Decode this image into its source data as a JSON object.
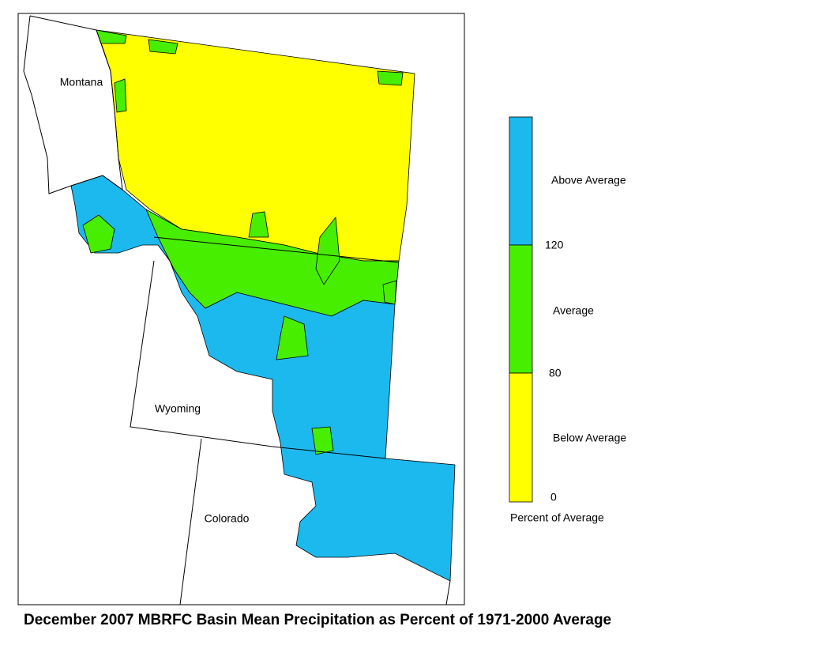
{
  "title": "December 2007 MBRFC Basin Mean Precipitation as Percent of 1971-2000 Average",
  "map": {
    "states": [
      {
        "label": "Montana"
      },
      {
        "label": "Wyoming"
      },
      {
        "label": "Colorado"
      }
    ]
  },
  "legend": {
    "title": "Percent of Average",
    "classes": [
      {
        "label": "Above Average",
        "color": "#1cb9ef"
      },
      {
        "label": "Average",
        "color": "#47ee00"
      },
      {
        "label": "Below Average",
        "color": "#ffff00"
      }
    ],
    "breaks": [
      120,
      80,
      0
    ]
  }
}
